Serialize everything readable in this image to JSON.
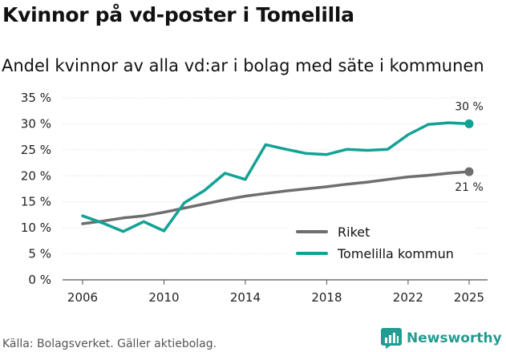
{
  "title": "Kvinnor på vd-poster i Tomelilla",
  "subtitle": "Andel kvinnor av alla vd:ar i bolag med säte i kommunen",
  "source": "Källa: Bolagsverket. Gäller aktiebolag.",
  "brand": "Newsworthy",
  "colors": {
    "riket": "#6e6e70",
    "tomelilla": "#12a295",
    "brand": "#229c92"
  },
  "chart_data": {
    "type": "line",
    "title": "Kvinnor på vd-poster i Tomelilla",
    "subtitle": "Andel kvinnor av alla vd:ar i bolag med säte i kommunen",
    "xlabel": "",
    "ylabel": "",
    "xlim": [
      2005,
      2026
    ],
    "ylim": [
      0,
      35
    ],
    "x_ticks": [
      2006,
      2010,
      2014,
      2018,
      2022,
      2025
    ],
    "y_ticks": [
      0,
      5,
      10,
      15,
      20,
      25,
      30,
      35
    ],
    "y_tick_labels": [
      "0 %",
      "5 %",
      "10 %",
      "15 %",
      "20 %",
      "25 %",
      "30 %",
      "35 %"
    ],
    "legend_position": "bottom-right",
    "series": [
      {
        "name": "Riket",
        "color": "#6e6e70",
        "x": [
          2006,
          2007,
          2008,
          2009,
          2010,
          2011,
          2012,
          2013,
          2014,
          2015,
          2016,
          2017,
          2018,
          2019,
          2020,
          2021,
          2022,
          2023,
          2024,
          2025
        ],
        "values": [
          10.8,
          11.3,
          11.9,
          12.3,
          13.0,
          13.8,
          14.6,
          15.4,
          16.1,
          16.6,
          17.1,
          17.5,
          17.9,
          18.4,
          18.8,
          19.3,
          19.8,
          20.1,
          20.5,
          20.8
        ],
        "end_label": "21 %"
      },
      {
        "name": "Tomelilla kommun",
        "color": "#12a295",
        "x": [
          2006,
          2007,
          2008,
          2009,
          2010,
          2011,
          2012,
          2013,
          2014,
          2015,
          2016,
          2017,
          2018,
          2019,
          2020,
          2021,
          2022,
          2023,
          2024,
          2025
        ],
        "values": [
          12.3,
          10.9,
          9.3,
          11.2,
          9.4,
          14.8,
          17.2,
          20.5,
          19.3,
          26.0,
          25.1,
          24.3,
          24.1,
          25.1,
          24.9,
          25.1,
          27.9,
          29.9,
          30.2,
          30.0
        ],
        "end_label": "30 %"
      }
    ]
  }
}
